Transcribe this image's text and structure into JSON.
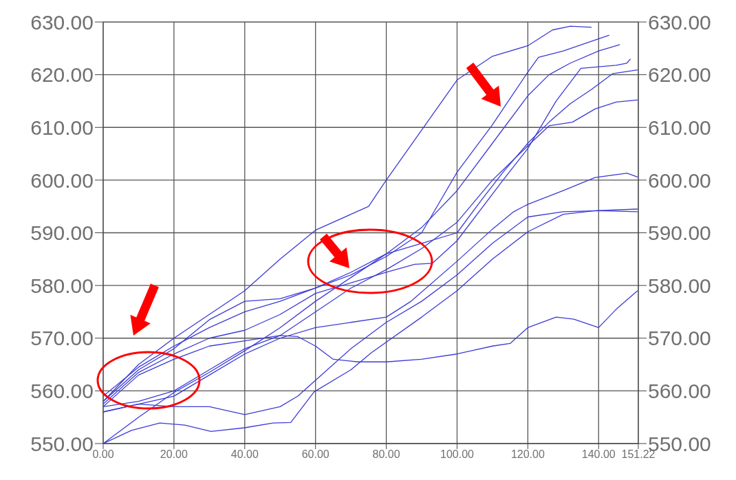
{
  "chart_data": {
    "type": "line",
    "xlim": [
      0,
      151.22
    ],
    "ylim": [
      550,
      630
    ],
    "y2lim": [
      550,
      630
    ],
    "xticks": [
      {
        "value": 0,
        "label": "0.00"
      },
      {
        "value": 20,
        "label": "20.00"
      },
      {
        "value": 40,
        "label": "40.00"
      },
      {
        "value": 60,
        "label": "60.00"
      },
      {
        "value": 80,
        "label": "80.00"
      },
      {
        "value": 100,
        "label": "100.00"
      },
      {
        "value": 120,
        "label": "120.00"
      },
      {
        "value": 140,
        "label": "140.00"
      },
      {
        "value": 151.22,
        "label": "151.22"
      }
    ],
    "yticks": [
      {
        "value": 550,
        "label": "550.00"
      },
      {
        "value": 560,
        "label": "560.00"
      },
      {
        "value": 570,
        "label": "570.00"
      },
      {
        "value": 580,
        "label": "580.00"
      },
      {
        "value": 590,
        "label": "590.00"
      },
      {
        "value": 600,
        "label": "600.00"
      },
      {
        "value": 610,
        "label": "610.00"
      },
      {
        "value": 620,
        "label": "620.00"
      },
      {
        "value": 630,
        "label": "630.00"
      }
    ],
    "y2ticks": [
      {
        "value": 550,
        "label": "550.00"
      },
      {
        "value": 560,
        "label": "560.00"
      },
      {
        "value": 570,
        "label": "570.00"
      },
      {
        "value": 580,
        "label": "580.00"
      },
      {
        "value": 590,
        "label": "590.00"
      },
      {
        "value": 600,
        "label": "600.00"
      },
      {
        "value": 610,
        "label": "610.00"
      },
      {
        "value": 620,
        "label": "620.00"
      },
      {
        "value": 630,
        "label": "630.00"
      }
    ],
    "grid": true,
    "series": [
      {
        "color": "#3b3bd6",
        "x": [
          0,
          10,
          20,
          30,
          40,
          50,
          60,
          70,
          75,
          80,
          90,
          100,
          110,
          120,
          127,
          132,
          138
        ],
        "values": [
          558,
          565,
          570,
          574.5,
          579,
          585,
          590.5,
          593.5,
          595,
          600,
          609.5,
          619,
          623.5,
          625.5,
          628.5,
          629.2,
          629
        ]
      },
      {
        "color": "#3b3bd6",
        "x": [
          0,
          10,
          20,
          30,
          40,
          50,
          60,
          70,
          80,
          90,
          100,
          110,
          120,
          123,
          130,
          143
        ],
        "values": [
          559,
          564.5,
          568.5,
          572,
          575,
          577,
          579.5,
          582,
          585.5,
          590,
          601.5,
          610.5,
          620.5,
          623.3,
          624.5,
          627.5
        ]
      },
      {
        "color": "#3b3bd6",
        "x": [
          0,
          10,
          20,
          30,
          40,
          50,
          60,
          70,
          80,
          90,
          100,
          110,
          120,
          126,
          132,
          140,
          146
        ],
        "values": [
          550,
          555,
          559.7,
          563.5,
          567.6,
          572,
          577,
          581.5,
          586,
          591,
          598,
          607,
          616,
          620,
          622.2,
          624.5,
          625.7
        ]
      },
      {
        "color": "#3b3bd6",
        "x": [
          0,
          10,
          20,
          30,
          40,
          50,
          60,
          70,
          80,
          88,
          93,
          100,
          113,
          120,
          128,
          135,
          145,
          148,
          149
        ],
        "values": [
          557.5,
          563.5,
          567,
          570,
          571.5,
          574.5,
          578.5,
          580.5,
          582.5,
          584,
          584.2,
          588.5,
          600,
          606,
          615,
          621.2,
          621.8,
          622.2,
          623
        ]
      },
      {
        "color": "#3b3bd6",
        "x": [
          0,
          10,
          20,
          30,
          40,
          50,
          60,
          70,
          80,
          90,
          100,
          107,
          113,
          120,
          126,
          132,
          138,
          144,
          151
        ],
        "values": [
          558,
          564,
          568,
          573.5,
          577,
          577.5,
          579.5,
          582.5,
          586,
          588,
          590,
          596.3,
          601.5,
          607,
          611,
          614.5,
          617.2,
          620.2,
          620.9
        ]
      },
      {
        "color": "#3b3bd6",
        "x": [
          0,
          10,
          20,
          30,
          40,
          50,
          60,
          70,
          80,
          90,
          100,
          110,
          120,
          126,
          132.6,
          139,
          145,
          151
        ],
        "values": [
          557,
          563,
          566,
          568.5,
          569.5,
          570.5,
          575,
          579.5,
          583,
          587,
          592,
          600,
          606.5,
          610.3,
          611,
          613.5,
          614.8,
          615.2
        ]
      },
      {
        "color": "#3b3bd6",
        "x": [
          0,
          10,
          20,
          30,
          40,
          50,
          60,
          70,
          80,
          87,
          100,
          110,
          116,
          120,
          130,
          139,
          148,
          151
        ],
        "values": [
          556,
          557.5,
          559,
          563,
          567,
          570,
          572,
          573,
          574,
          577,
          584.6,
          590.7,
          594,
          595.4,
          598,
          600.5,
          601.3,
          600.6
        ]
      },
      {
        "color": "#3b3bd6",
        "x": [
          0,
          8,
          16,
          23,
          30.5,
          40,
          48,
          53,
          59.6,
          70,
          75.7,
          90,
          100,
          110,
          120,
          130,
          139,
          151
        ],
        "values": [
          550,
          552.5,
          553.9,
          553.5,
          552.3,
          553,
          553.9,
          554,
          559.8,
          564,
          567.2,
          574,
          579,
          585,
          590.2,
          593.5,
          594.2,
          594.5
        ]
      },
      {
        "color": "#3b3bd6",
        "x": [
          0,
          10,
          20,
          30,
          40,
          50,
          55,
          60,
          70,
          80,
          90,
          100,
          110,
          120,
          130,
          140,
          151
        ],
        "values": [
          556,
          557.5,
          557,
          557,
          555.5,
          557,
          559,
          562,
          568,
          573,
          577,
          582,
          588,
          593,
          594,
          594.2,
          594
        ]
      },
      {
        "color": "#3b3bd6",
        "x": [
          0,
          10,
          20,
          30,
          40,
          50,
          55,
          60,
          65,
          72,
          80,
          90,
          100,
          110,
          115,
          120,
          128,
          133,
          140,
          145,
          151
        ],
        "values": [
          557,
          558,
          560,
          564,
          568,
          570.5,
          570.3,
          568.5,
          566,
          565.5,
          565.5,
          566,
          567,
          568.5,
          569,
          572,
          574,
          573.6,
          572,
          575.5,
          579
        ]
      }
    ]
  }
}
